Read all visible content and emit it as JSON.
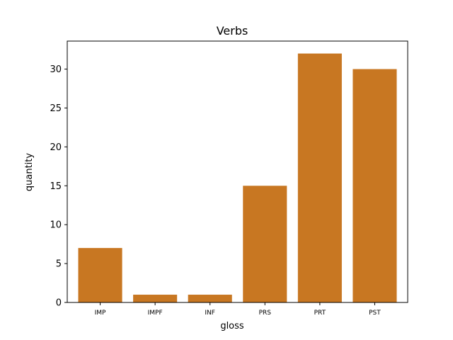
{
  "chart_data": {
    "type": "bar",
    "title": "Verbs",
    "xlabel": "gloss",
    "ylabel": "quantity",
    "categories": [
      "IMP",
      "IMPF",
      "INF",
      "PRS",
      "PRT",
      "PST"
    ],
    "values": [
      7,
      1,
      1,
      15,
      32,
      30
    ],
    "ylim": [
      0,
      33.6
    ],
    "yticks": [
      0,
      5,
      10,
      15,
      20,
      25,
      30
    ],
    "bar_color": "#c87722",
    "grid": false,
    "legend": "none"
  }
}
